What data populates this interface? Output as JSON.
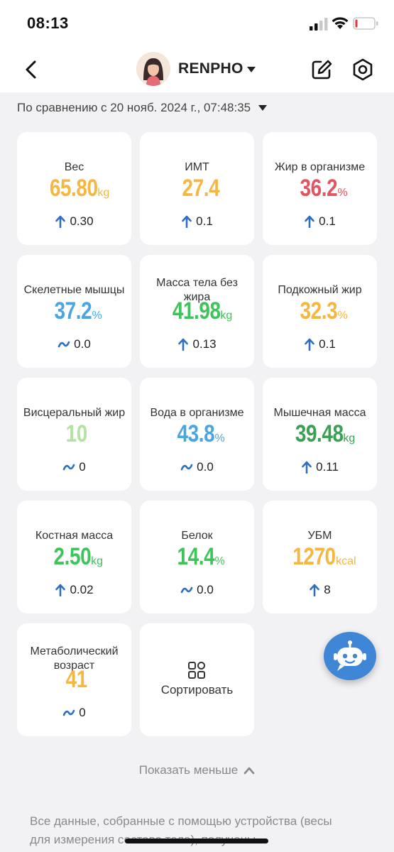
{
  "status_bar": {
    "time": "08:13"
  },
  "header": {
    "profile_name": "RENPHO"
  },
  "comparison": {
    "text": "По сравнению с 20 нояб. 2024 г., 07:48:35"
  },
  "metrics": [
    {
      "label": "Вес",
      "value": "65.80",
      "unit": "kg",
      "delta": "0.30",
      "trend": "up",
      "color": "#f5b742"
    },
    {
      "label": "ИМТ",
      "value": "27.4",
      "unit": "",
      "delta": "0.1",
      "trend": "up",
      "color": "#f5b742"
    },
    {
      "label": "Жир в организме",
      "value": "36.2",
      "unit": "%",
      "delta": "0.1",
      "trend": "up",
      "color": "#e2545f"
    },
    {
      "label": "Скелетные мышцы",
      "value": "37.2",
      "unit": "%",
      "delta": "0.0",
      "trend": "flat",
      "color": "#4aa6e3"
    },
    {
      "label": "Масса тела без жира",
      "value": "41.98",
      "unit": "kg",
      "delta": "0.13",
      "trend": "up",
      "color": "#3ec45a"
    },
    {
      "label": "Подкожный жир",
      "value": "32.3",
      "unit": "%",
      "delta": "0.1",
      "trend": "up",
      "color": "#f5b742"
    },
    {
      "label": "Висцеральный жир",
      "value": "10",
      "unit": "",
      "delta": "0",
      "trend": "flat",
      "color": "#b4e2a3"
    },
    {
      "label": "Вода в организме",
      "value": "43.8",
      "unit": "%",
      "delta": "0.0",
      "trend": "flat",
      "color": "#4aa6e3"
    },
    {
      "label": "Мышечная масса",
      "value": "39.48",
      "unit": "kg",
      "delta": "0.11",
      "trend": "up",
      "color": "#3b9f54"
    },
    {
      "label": "Костная масса",
      "value": "2.50",
      "unit": "kg",
      "delta": "0.02",
      "trend": "up",
      "color": "#3ec45a"
    },
    {
      "label": "Белок",
      "value": "14.4",
      "unit": "%",
      "delta": "0.0",
      "trend": "flat",
      "color": "#3ec45a"
    },
    {
      "label": "УБМ",
      "value": "1270",
      "unit": "kcal",
      "delta": "8",
      "trend": "up",
      "color": "#f5b742"
    },
    {
      "label": "Метаболический возраст",
      "value": "41",
      "unit": "",
      "delta": "0",
      "trend": "flat",
      "color": "#f5b742"
    }
  ],
  "sort_card": {
    "label": "Сортировать"
  },
  "show_less": {
    "label": "Показать меньше"
  },
  "footer": {
    "text": "Все данные, собранные с помощью устройства (весы для измерения состава тела), получены"
  },
  "colors": {
    "trend_icon": "#2f6fc0",
    "fab": "#3f86d6"
  },
  "icons": {
    "back": "chevron-left-icon",
    "edit": "edit-icon",
    "settings": "hexagon-gear-icon",
    "up": "arrow-up-icon",
    "flat": "wave-icon",
    "sort": "grid-sort-icon",
    "bot": "chatbot-icon"
  }
}
